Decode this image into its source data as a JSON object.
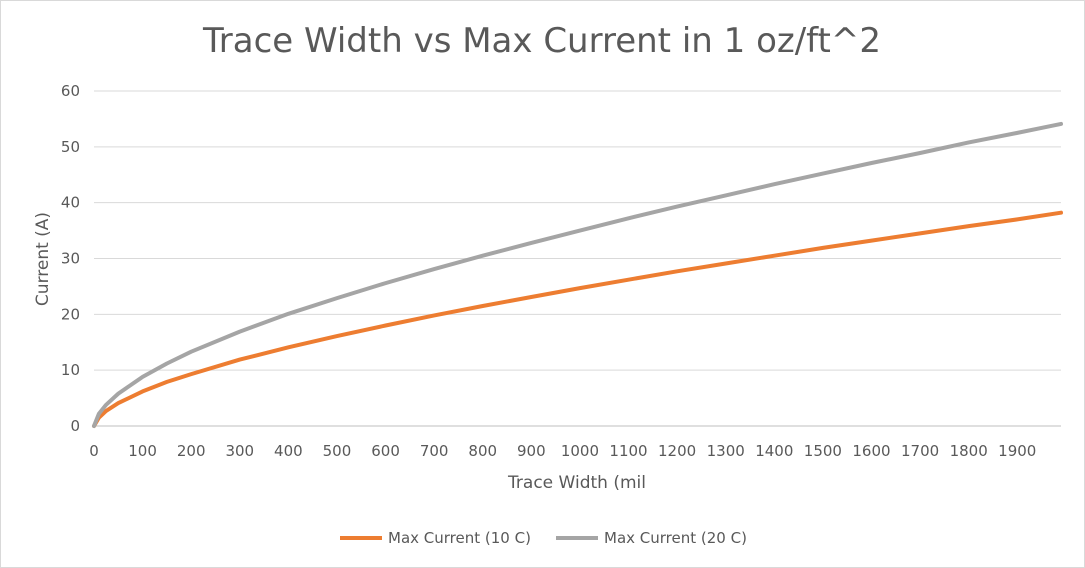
{
  "chart_data": {
    "type": "line",
    "title": "Trace Width vs Max Current in 1 oz/ft^2",
    "xlabel": "Trace Width (mil",
    "ylabel": "Current (A)",
    "xlim": [
      0,
      1990
    ],
    "ylim": [
      0,
      60
    ],
    "x_ticks": [
      0,
      100,
      200,
      300,
      400,
      500,
      600,
      700,
      800,
      900,
      1000,
      1100,
      1200,
      1300,
      1400,
      1500,
      1600,
      1700,
      1800,
      1900
    ],
    "x_tick_labels": [
      "0",
      "100",
      "200",
      "300",
      "400",
      "500",
      "600",
      "700",
      "800",
      "900",
      "1000",
      "1100",
      "1200",
      "1300",
      "1400",
      "1500",
      "1600",
      "1700",
      "1800",
      "1900"
    ],
    "y_ticks": [
      0,
      10,
      20,
      30,
      40,
      50,
      60
    ],
    "y_tick_labels": [
      "0",
      "10",
      "20",
      "30",
      "40",
      "50",
      "60"
    ],
    "grid": "horizontal",
    "legend_position": "bottom",
    "x": [
      0,
      10,
      25,
      50,
      100,
      150,
      200,
      300,
      400,
      500,
      600,
      700,
      800,
      900,
      1000,
      1100,
      1200,
      1300,
      1400,
      1500,
      1600,
      1700,
      1800,
      1900,
      1990
    ],
    "series": [
      {
        "name": "Max Current (10 C)",
        "color": "#ed7d31",
        "values": [
          0,
          1.5,
          2.7,
          4.1,
          6.2,
          7.9,
          9.3,
          11.9,
          14.1,
          16.1,
          18.0,
          19.8,
          21.5,
          23.1,
          24.7,
          26.2,
          27.7,
          29.1,
          30.5,
          31.9,
          33.2,
          34.5,
          35.8,
          37.0,
          38.2
        ]
      },
      {
        "name": "Max Current (20 C)",
        "color": "#a5a5a5",
        "values": [
          0,
          2.2,
          3.8,
          5.8,
          8.8,
          11.2,
          13.3,
          16.9,
          20.1,
          22.9,
          25.6,
          28.1,
          30.5,
          32.8,
          35.0,
          37.2,
          39.3,
          41.3,
          43.3,
          45.2,
          47.1,
          48.9,
          50.8,
          52.5,
          54.1
        ]
      }
    ]
  }
}
